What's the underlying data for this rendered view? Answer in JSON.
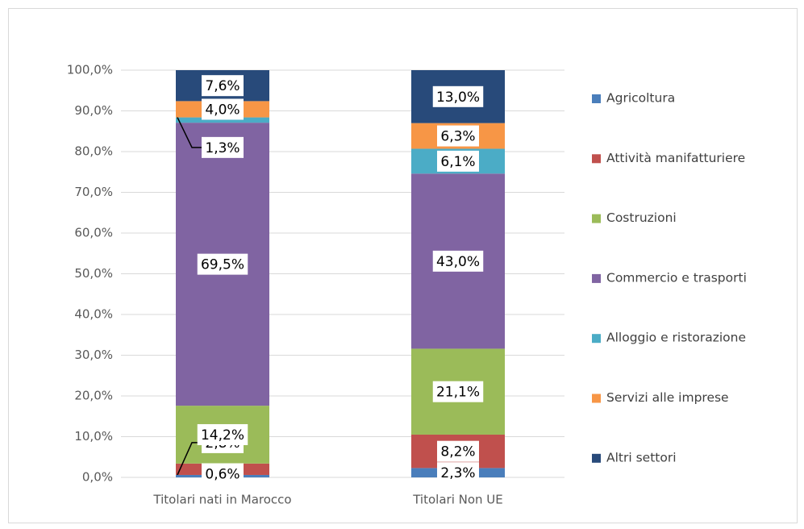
{
  "chart_data": {
    "type": "stacked_bar",
    "categories": [
      "Titolari nati in Marocco",
      "Titolari Non UE"
    ],
    "series": [
      {
        "name": "Agricoltura",
        "color": "#4a7ebb",
        "values": [
          0.6,
          2.3
        ],
        "value_labels": [
          "0,6%",
          "2,3%"
        ]
      },
      {
        "name": "Attività manifatturiere",
        "color": "#c0504d",
        "values": [
          2.8,
          8.2
        ],
        "value_labels": [
          "2,8%",
          "8,2%"
        ]
      },
      {
        "name": "Costruzioni",
        "color": "#9bbb59",
        "values": [
          14.2,
          21.1
        ],
        "value_labels": [
          "14,2%",
          "21,1%"
        ]
      },
      {
        "name": "Commercio e trasporti",
        "color": "#8064a2",
        "values": [
          69.5,
          43.0
        ],
        "value_labels": [
          "69,5%",
          "43,0%"
        ]
      },
      {
        "name": "Alloggio e ristorazione",
        "color": "#4bacc6",
        "values": [
          1.3,
          6.1
        ],
        "value_labels": [
          "1,3%",
          "6,1%"
        ]
      },
      {
        "name": "Servizi alle imprese",
        "color": "#f79646",
        "values": [
          4.0,
          6.3
        ],
        "value_labels": [
          "4,0%",
          "6,3%"
        ]
      },
      {
        "name": "Altri settori",
        "color": "#284a7a",
        "values": [
          7.6,
          13.0
        ],
        "value_labels": [
          "7,6%",
          "13,0%"
        ]
      }
    ],
    "ylim": [
      0,
      100
    ],
    "yticks": [
      {
        "value": 0,
        "label": "0,0%"
      },
      {
        "value": 10,
        "label": "10,0%"
      },
      {
        "value": 20,
        "label": "20,0%"
      },
      {
        "value": 30,
        "label": "30,0%"
      },
      {
        "value": 40,
        "label": "40,0%"
      },
      {
        "value": 50,
        "label": "50,0%"
      },
      {
        "value": 60,
        "label": "60,0%"
      },
      {
        "value": 70,
        "label": "70,0%"
      },
      {
        "value": 80,
        "label": "80,0%"
      },
      {
        "value": 90,
        "label": "90,0%"
      },
      {
        "value": 100,
        "label": "100,0%"
      }
    ],
    "grid": true,
    "legend": "right"
  }
}
